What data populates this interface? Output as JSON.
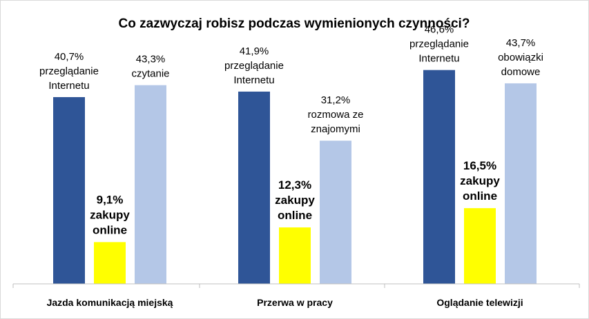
{
  "chart_data": {
    "type": "bar",
    "title": "Co zazwyczaj robisz podczas wymienionych czynności?",
    "categories": [
      "Jazda komunikacją miejską",
      "Przerwa w pracy",
      "Oglądanie telewizji"
    ],
    "ylim": [
      0,
      50
    ],
    "grid": false,
    "colors": [
      "#2f5597",
      "#ffff00",
      "#b4c7e7"
    ],
    "bars": [
      [
        {
          "value": 40.7,
          "value_label": "40,7%",
          "label_lines": [
            "przeglądanie",
            "Internetu"
          ],
          "bold": false
        },
        {
          "value": 9.1,
          "value_label": "9,1%",
          "label_lines": [
            "zakupy",
            "online"
          ],
          "bold": true
        },
        {
          "value": 43.3,
          "value_label": "43,3%",
          "label_lines": [
            "czytanie"
          ],
          "bold": false
        }
      ],
      [
        {
          "value": 41.9,
          "value_label": "41,9%",
          "label_lines": [
            "przeglądanie",
            "Internetu"
          ],
          "bold": false
        },
        {
          "value": 12.3,
          "value_label": "12,3%",
          "label_lines": [
            "zakupy",
            "online"
          ],
          "bold": true
        },
        {
          "value": 31.2,
          "value_label": "31,2%",
          "label_lines": [
            "rozmowa ze",
            "znajomymi"
          ],
          "bold": false
        }
      ],
      [
        {
          "value": 46.6,
          "value_label": "46,6%",
          "label_lines": [
            "przeglądanie",
            "Internetu"
          ],
          "bold": false
        },
        {
          "value": 16.5,
          "value_label": "16,5%",
          "label_lines": [
            "zakupy",
            "online"
          ],
          "bold": true
        },
        {
          "value": 43.7,
          "value_label": "43,7%",
          "label_lines": [
            "obowiązki",
            "domowe"
          ],
          "bold": false
        }
      ]
    ]
  }
}
